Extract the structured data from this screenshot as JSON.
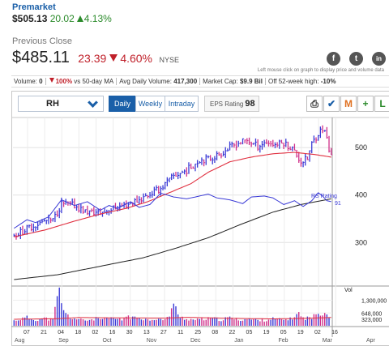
{
  "premarket": {
    "label": "Premarket",
    "price": "$505.13",
    "change": "20.02",
    "percent": "4.13%"
  },
  "quote": {
    "previous_close_label": "Previous Close",
    "price": "$485.11",
    "change": "23.39",
    "percent": "4.60%",
    "exchange": "NYSE"
  },
  "social": {
    "facebook": "f",
    "twitter": "t",
    "linkedin": "in"
  },
  "hint": "Left mouse click on graph to display price and volume data",
  "stats": {
    "volume_label": "Volume:",
    "volume_value": "0",
    "vs_ma_value": "100%",
    "vs_ma_label": "vs 50-day MA",
    "avg_volume_label": "Avg Daily Volume:",
    "avg_volume_value": "417,300",
    "market_cap_label": "Market Cap:",
    "market_cap_value": "$9.9 Bil",
    "off_high_label": "Off 52-week high:",
    "off_high_value": "-10%"
  },
  "toolbar": {
    "ticker": "RH",
    "periods": [
      "Daily",
      "Weekly",
      "Intraday"
    ],
    "active_period": "Daily",
    "eps_label": "EPS Rating",
    "eps_value": "98",
    "tools": [
      "print-icon",
      "check-icon",
      "draw-icon",
      "add-icon",
      "layout-icon"
    ],
    "tool_glyphs": [
      "⎙",
      "✔",
      "M",
      "+",
      "L"
    ]
  },
  "colors": {
    "accent": "#1a5fa8",
    "up": "#2a8a2a",
    "down": "#c0202a",
    "price_bar": "#3a3ad6",
    "rs_line": "#3a3ad6",
    "ma_short": "#e03040",
    "ma_long": "#222222"
  },
  "chart_data": {
    "type": "line",
    "price_axis_ticks": [
      500,
      400,
      300
    ],
    "ylim": [
      210,
      560
    ],
    "rs_label": "RS Rating",
    "rs_value": "91",
    "volume_label": "Vol",
    "volume_ticks": [
      "1,300,000",
      "648,000",
      "323,000"
    ],
    "volume_tick_values": [
      1300000,
      648000,
      323000
    ],
    "volume_max": 1900000,
    "x_ticks": [
      "07",
      "21",
      "04",
      "18",
      "02",
      "16",
      "30",
      "13",
      "27",
      "11",
      "25",
      "08",
      "22",
      "05",
      "19",
      "05",
      "19",
      "02",
      "16"
    ],
    "months": [
      "Aug",
      "Sep",
      "Oct",
      "Nov",
      "Dec",
      "Jan",
      "Feb",
      "Mar",
      "Apr"
    ],
    "price_close_keypoints": [
      [
        0,
        315
      ],
      [
        8,
        333
      ],
      [
        14,
        345
      ],
      [
        18,
        346
      ],
      [
        22,
        382
      ],
      [
        28,
        378
      ],
      [
        33,
        365
      ],
      [
        40,
        362
      ],
      [
        46,
        372
      ],
      [
        52,
        380
      ],
      [
        58,
        390
      ],
      [
        63,
        402
      ],
      [
        68,
        414
      ],
      [
        74,
        440
      ],
      [
        80,
        452
      ],
      [
        86,
        474
      ],
      [
        91,
        477
      ],
      [
        96,
        488
      ],
      [
        100,
        500
      ],
      [
        104,
        510
      ],
      [
        108,
        515
      ],
      [
        113,
        503
      ],
      [
        117,
        512
      ],
      [
        121,
        506
      ],
      [
        125,
        510
      ],
      [
        129,
        498
      ],
      [
        133,
        470
      ],
      [
        136,
        476
      ],
      [
        138,
        508
      ],
      [
        141,
        530
      ],
      [
        143,
        540
      ],
      [
        145,
        522
      ],
      [
        146,
        490
      ],
      [
        147,
        485
      ]
    ],
    "ma50_keypoints": [
      [
        0,
        312
      ],
      [
        14,
        326
      ],
      [
        28,
        345
      ],
      [
        40,
        360
      ],
      [
        52,
        372
      ],
      [
        62,
        386
      ],
      [
        72,
        405
      ],
      [
        82,
        424
      ],
      [
        90,
        448
      ],
      [
        100,
        470
      ],
      [
        110,
        480
      ],
      [
        120,
        487
      ],
      [
        130,
        490
      ],
      [
        140,
        485
      ],
      [
        147,
        480
      ]
    ],
    "ma200_keypoints": [
      [
        0,
        222
      ],
      [
        20,
        232
      ],
      [
        40,
        250
      ],
      [
        60,
        268
      ],
      [
        75,
        288
      ],
      [
        90,
        310
      ],
      [
        105,
        338
      ],
      [
        120,
        364
      ],
      [
        133,
        380
      ],
      [
        147,
        392
      ]
    ],
    "rs_keypoints": [
      [
        0,
        330
      ],
      [
        6,
        348
      ],
      [
        10,
        342
      ],
      [
        16,
        354
      ],
      [
        22,
        390
      ],
      [
        28,
        378
      ],
      [
        34,
        386
      ],
      [
        40,
        368
      ],
      [
        44,
        378
      ],
      [
        48,
        372
      ],
      [
        54,
        386
      ],
      [
        58,
        374
      ],
      [
        63,
        380
      ],
      [
        68,
        404
      ],
      [
        74,
        396
      ],
      [
        80,
        392
      ],
      [
        84,
        396
      ],
      [
        90,
        402
      ],
      [
        94,
        394
      ],
      [
        100,
        390
      ],
      [
        106,
        382
      ],
      [
        110,
        396
      ],
      [
        116,
        398
      ],
      [
        120,
        394
      ],
      [
        125,
        380
      ],
      [
        130,
        388
      ],
      [
        134,
        376
      ],
      [
        138,
        388
      ],
      [
        141,
        405
      ],
      [
        143,
        398
      ],
      [
        145,
        388
      ],
      [
        147,
        386
      ]
    ],
    "volume_keypoints": [
      [
        0,
        260000
      ],
      [
        6,
        420000
      ],
      [
        10,
        300000
      ],
      [
        14,
        380000
      ],
      [
        18,
        300000
      ],
      [
        21,
        1850000
      ],
      [
        23,
        700000
      ],
      [
        26,
        420000
      ],
      [
        30,
        310000
      ],
      [
        34,
        280000
      ],
      [
        38,
        360000
      ],
      [
        42,
        320000
      ],
      [
        46,
        380000
      ],
      [
        50,
        290000
      ],
      [
        52,
        520000
      ],
      [
        55,
        380000
      ],
      [
        58,
        440000
      ],
      [
        62,
        300000
      ],
      [
        66,
        360000
      ],
      [
        70,
        280000
      ],
      [
        72,
        560000
      ],
      [
        74,
        1200000
      ],
      [
        76,
        500000
      ],
      [
        80,
        340000
      ],
      [
        84,
        300000
      ],
      [
        88,
        330000
      ],
      [
        92,
        380000
      ],
      [
        96,
        300000
      ],
      [
        100,
        420000
      ],
      [
        104,
        300000
      ],
      [
        108,
        340000
      ],
      [
        112,
        300000
      ],
      [
        116,
        280000
      ],
      [
        120,
        360000
      ],
      [
        124,
        300000
      ],
      [
        128,
        340000
      ],
      [
        132,
        620000
      ],
      [
        134,
        380000
      ],
      [
        138,
        420000
      ],
      [
        142,
        680000
      ],
      [
        144,
        700000
      ],
      [
        146,
        500000
      ],
      [
        147,
        0
      ]
    ],
    "volume_ma_keypoints": [
      [
        0,
        330000
      ],
      [
        20,
        360000
      ],
      [
        30,
        420000
      ],
      [
        50,
        400000
      ],
      [
        70,
        390000
      ],
      [
        80,
        430000
      ],
      [
        100,
        380000
      ],
      [
        120,
        350000
      ],
      [
        135,
        380000
      ],
      [
        147,
        420000
      ]
    ],
    "bars": 148,
    "grid": true
  }
}
